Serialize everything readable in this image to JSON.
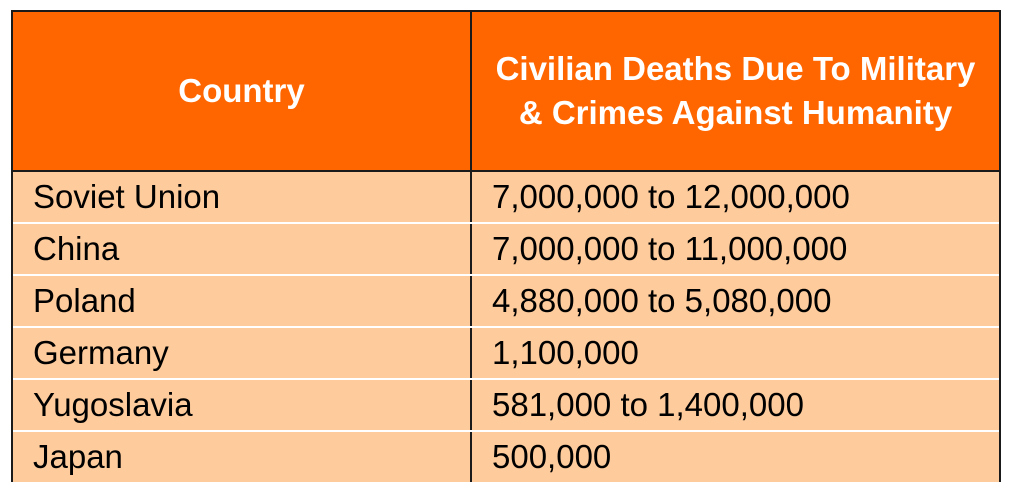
{
  "table": {
    "headers": [
      "Country",
      "Civilian Deaths Due To Military & Crimes Against Humanity"
    ],
    "rows": [
      [
        "Soviet Union",
        "7,000,000 to 12,000,000"
      ],
      [
        "China",
        "7,000,000 to 11,000,000"
      ],
      [
        "Poland",
        "4,880,000 to 5,080,000"
      ],
      [
        "Germany",
        "1,100,000"
      ],
      [
        "Yugoslavia",
        "581,000 to 1,400,000"
      ],
      [
        "Japan",
        "500,000"
      ]
    ],
    "colors": {
      "header_bg": "#ff6600",
      "header_text": "#ffffff",
      "body_bg": "#fdcb9c",
      "body_text": "#000000"
    }
  }
}
